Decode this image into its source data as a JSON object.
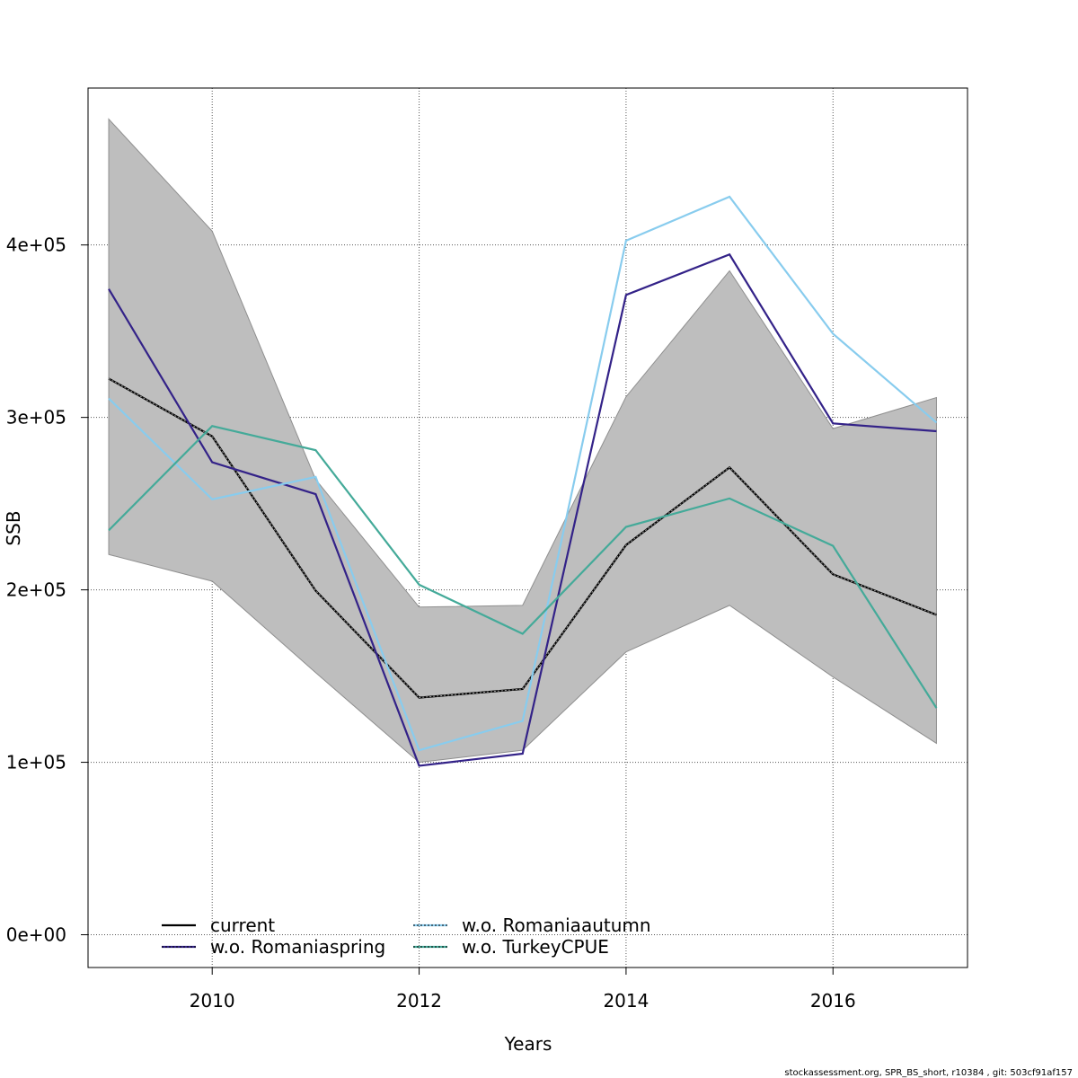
{
  "chart_data": {
    "type": "line",
    "xlabel": "Years",
    "ylabel": "SSB",
    "xlim": [
      2008.8,
      2017.3
    ],
    "ylim": [
      -19000,
      491000
    ],
    "x_ticks": [
      2010,
      2012,
      2014,
      2016
    ],
    "y_ticks": [
      0,
      100000,
      200000,
      300000,
      400000
    ],
    "y_tick_labels": [
      "0e+00",
      "1e+05",
      "2e+05",
      "3e+05",
      "4e+05"
    ],
    "grid": true,
    "legend_position": "bottom-left",
    "x": [
      2009,
      2010,
      2011,
      2012,
      2013,
      2014,
      2015,
      2016,
      2017
    ],
    "confidence_band": {
      "lower": [
        220500,
        205000,
        152000,
        100000,
        107000,
        164000,
        191000,
        149500,
        111000
      ],
      "upper": [
        473000,
        408000,
        264000,
        190000,
        191000,
        312000,
        385000,
        293500,
        311500
      ],
      "color": "#bebebe"
    },
    "series": [
      {
        "name": "current",
        "color": "#000000",
        "values": [
          322500,
          289000,
          199500,
          137500,
          142500,
          226000,
          271000,
          209000,
          185500
        ]
      },
      {
        "name": "w.o. Romaniaspring",
        "color": "#332288",
        "values": [
          374500,
          274000,
          255500,
          98000,
          105000,
          371000,
          394500,
          296500,
          292000
        ]
      },
      {
        "name": "w.o. Romaniaautumn",
        "color": "#88ccee",
        "values": [
          311000,
          252500,
          265500,
          107000,
          124000,
          402500,
          428000,
          348500,
          297000
        ]
      },
      {
        "name": "w.o. TurkeyCPUE",
        "color": "#44aa99",
        "values": [
          234500,
          295000,
          281000,
          203000,
          174500,
          236500,
          253000,
          225500,
          131500
        ]
      }
    ]
  },
  "footer": "stockassessment.org, SPR_BS_short, r10384 , git: 503cf91af157"
}
